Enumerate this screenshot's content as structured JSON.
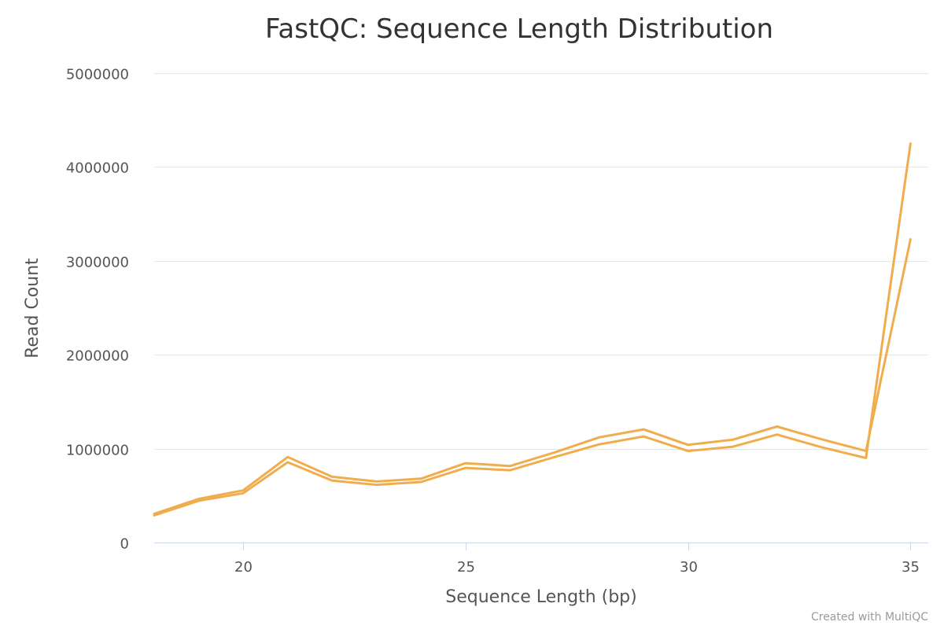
{
  "chart_data": {
    "type": "line",
    "title": "FastQC: Sequence Length Distribution",
    "xlabel": "Sequence Length (bp)",
    "ylabel": "Read Count",
    "xlim": [
      18,
      35.4
    ],
    "ylim": [
      0,
      5000000
    ],
    "x_ticks": [
      20,
      25,
      30,
      35
    ],
    "y_ticks": [
      0,
      1000000,
      2000000,
      3000000,
      4000000,
      5000000
    ],
    "grid": true,
    "legend": "none",
    "x": [
      18,
      19,
      20,
      21,
      22,
      23,
      24,
      25,
      26,
      27,
      28,
      29,
      30,
      31,
      32,
      33,
      34,
      35
    ],
    "series": [
      {
        "values": [
          305000,
          465000,
          555000,
          910000,
          700000,
          650000,
          680000,
          845000,
          815000,
          960000,
          1120000,
          1205000,
          1040000,
          1095000,
          1235000,
          1100000,
          975000,
          3230000
        ],
        "color": "#f0ad4e"
      },
      {
        "values": [
          290000,
          445000,
          525000,
          855000,
          660000,
          615000,
          645000,
          795000,
          770000,
          910000,
          1045000,
          1130000,
          975000,
          1020000,
          1150000,
          1015000,
          900000,
          4250000
        ],
        "color": "#f0ad4e"
      }
    ]
  },
  "credit": "Created with MultiQC"
}
